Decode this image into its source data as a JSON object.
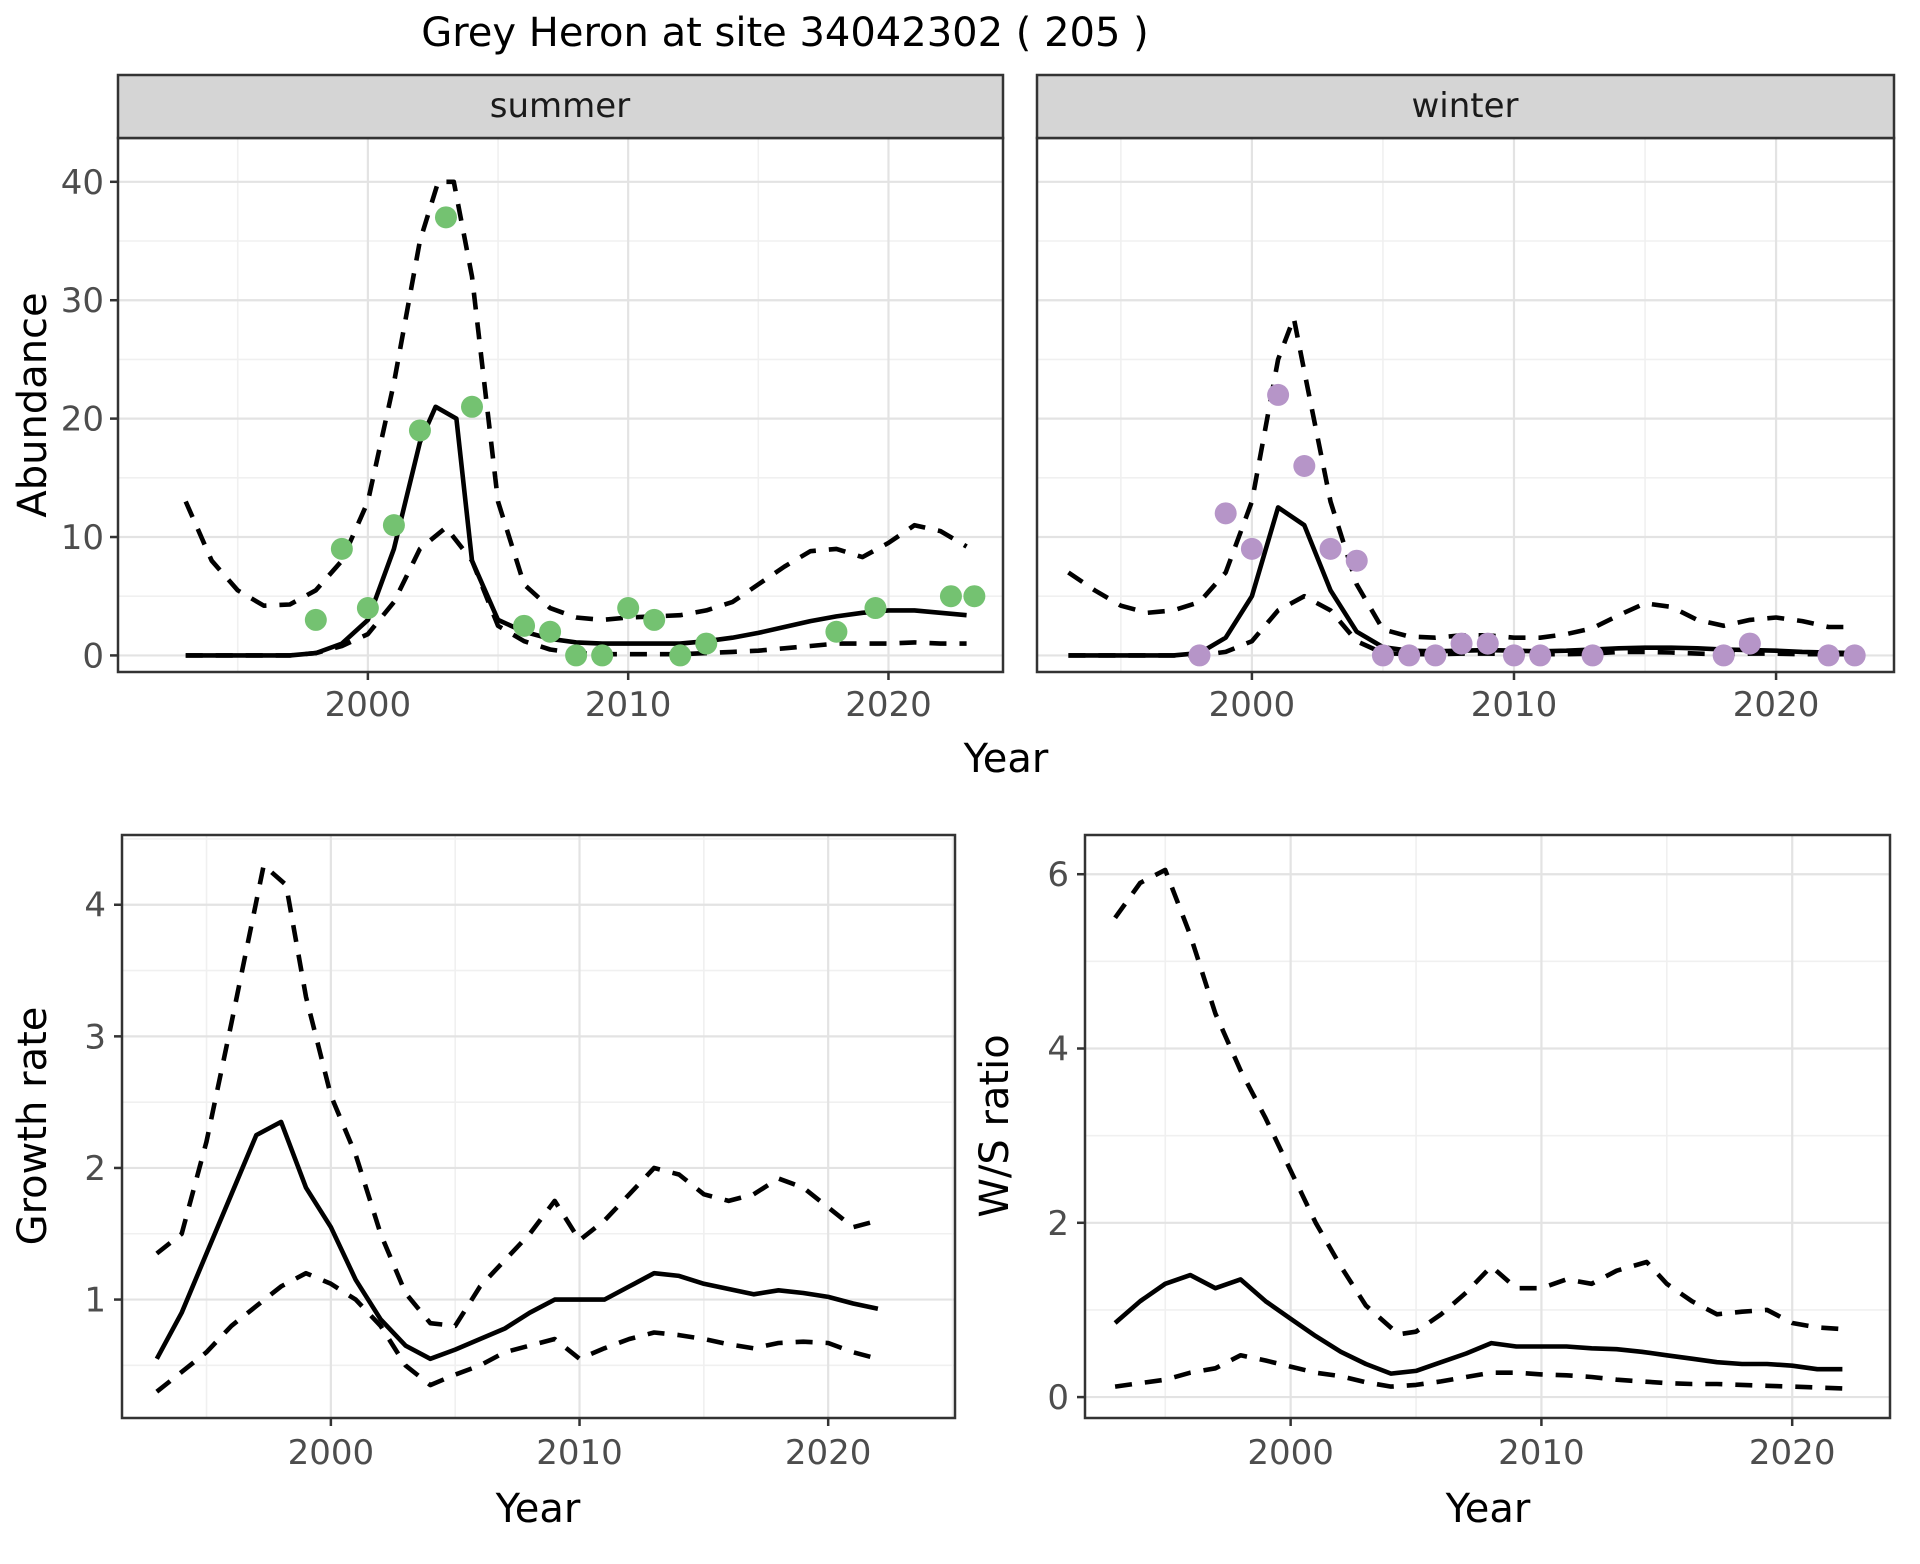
{
  "title": "Grey Heron at site 34042302 ( 205 )",
  "colors": {
    "summer_points": "#74c271",
    "winter_points": "#b695c8",
    "line": "#000000",
    "strip_fill": "#d5d5d5",
    "strip_border": "#333333",
    "panel_border": "#333333",
    "grid_major": "#e3e3e3",
    "grid_minor": "#f0f0f0",
    "tick_text": "#4d4d4d"
  },
  "chart_data": [
    {
      "id": "summer",
      "type": "line",
      "facet": "summer",
      "xlabel": "Year",
      "ylabel": "Abundance",
      "xlim": [
        1990.4,
        2024.4
      ],
      "ylim": [
        -1.4,
        43.7
      ],
      "xticks": [
        2000,
        2010,
        2020
      ],
      "xminor": [
        1995,
        2005,
        2015
      ],
      "yticks": [
        0,
        10,
        20,
        30,
        40
      ],
      "yminor": [
        5,
        15,
        25,
        35
      ],
      "series": [
        {
          "name": "ci_upper",
          "style": "dashed",
          "color": "#000000",
          "x": [
            1993,
            1994,
            1995,
            1996,
            1997,
            1998,
            1999,
            2000,
            2001,
            2002,
            2002.7,
            2003.3,
            2004,
            2005,
            2006,
            2007,
            2008,
            2009,
            2010,
            2011,
            2012,
            2013,
            2014,
            2015,
            2016,
            2017,
            2018,
            2019,
            2020,
            2021,
            2022,
            2023
          ],
          "y": [
            13,
            8,
            5.5,
            4.2,
            4.3,
            5.5,
            8,
            13,
            23,
            35,
            40,
            40,
            32,
            13,
            6,
            4,
            3.2,
            3,
            3.2,
            3.3,
            3.4,
            3.8,
            4.5,
            6,
            7.5,
            8.8,
            9,
            8.3,
            9.5,
            11,
            10.5,
            9.2
          ]
        },
        {
          "name": "ci_lower",
          "style": "dashed",
          "color": "#000000",
          "x": [
            1993,
            1994,
            1995,
            1996,
            1997,
            1998,
            1999,
            2000,
            2001,
            2002,
            2003,
            2004,
            2005,
            2006,
            2007,
            2008,
            2009,
            2010,
            2011,
            2012,
            2013,
            2014,
            2015,
            2016,
            2017,
            2018,
            2019,
            2020,
            2021,
            2022,
            2023
          ],
          "y": [
            0,
            0,
            0,
            0,
            0,
            0.2,
            0.8,
            1.8,
            4.5,
            9,
            10.8,
            8,
            2.5,
            1.2,
            0.5,
            0.2,
            0.1,
            0.1,
            0.1,
            0.1,
            0.2,
            0.3,
            0.4,
            0.6,
            0.8,
            1,
            1,
            1,
            1.1,
            1,
            1
          ]
        },
        {
          "name": "fitted",
          "style": "solid",
          "color": "#000000",
          "x": [
            1993,
            1994,
            1995,
            1996,
            1997,
            1998,
            1999,
            2000,
            2001,
            2002,
            2002.6,
            2003.4,
            2004,
            2005,
            2006,
            2007,
            2008,
            2009,
            2010,
            2011,
            2012,
            2013,
            2014,
            2015,
            2016,
            2017,
            2018,
            2019,
            2020,
            2021,
            2022,
            2023
          ],
          "y": [
            0,
            0,
            0,
            0,
            0,
            0.2,
            1,
            3,
            9,
            18,
            21,
            20,
            8,
            3,
            2,
            1.4,
            1.1,
            1,
            1,
            1,
            1,
            1.2,
            1.5,
            1.9,
            2.4,
            2.9,
            3.3,
            3.6,
            3.8,
            3.8,
            3.6,
            3.4
          ]
        },
        {
          "name": "observed",
          "style": "points",
          "color": "#74c271",
          "x": [
            1998,
            1999,
            2000,
            2001,
            2002,
            2003,
            2004,
            2006,
            2007,
            2008,
            2009,
            2010,
            2011,
            2012,
            2013,
            2018,
            2019.5,
            2022.4,
            2023.3
          ],
          "y": [
            3,
            9,
            4,
            11,
            19,
            37,
            21,
            2.5,
            2,
            0,
            0,
            4,
            3,
            0,
            1,
            2,
            4,
            5,
            5
          ]
        }
      ]
    },
    {
      "id": "winter",
      "type": "line",
      "facet": "winter",
      "xlabel": "Year",
      "ylabel": "Abundance",
      "xlim": [
        1991.8,
        2024.5
      ],
      "ylim": [
        -1.4,
        43.7
      ],
      "xticks": [
        2000,
        2010,
        2020
      ],
      "xminor": [
        1995,
        2005,
        2015
      ],
      "yticks": [
        0,
        10,
        20,
        30,
        40
      ],
      "yminor": [
        5,
        15,
        25,
        35
      ],
      "series": [
        {
          "name": "ci_upper",
          "style": "dashed",
          "color": "#000000",
          "x": [
            1993,
            1994,
            1995,
            1996,
            1997,
            1998,
            1999,
            2000,
            2001,
            2001.6,
            2002,
            2003,
            2004,
            2005,
            2006,
            2007,
            2008,
            2009,
            2010,
            2011,
            2012,
            2013,
            2014,
            2015,
            2016,
            2017,
            2018,
            2019,
            2020,
            2021,
            2022,
            2023
          ],
          "y": [
            7,
            5.5,
            4.2,
            3.6,
            3.8,
            4.5,
            7,
            13,
            25,
            28.5,
            24,
            13,
            6,
            2.2,
            1.6,
            1.5,
            1.7,
            1.7,
            1.5,
            1.5,
            1.8,
            2.3,
            3.4,
            4.4,
            4.1,
            3,
            2.5,
            3,
            3.2,
            2.9,
            2.4,
            2.4
          ]
        },
        {
          "name": "ci_lower",
          "style": "dashed",
          "color": "#000000",
          "x": [
            1993,
            1994,
            1995,
            1996,
            1997,
            1998,
            1999,
            2000,
            2001,
            2002,
            2003,
            2004,
            2005,
            2006,
            2007,
            2008,
            2009,
            2010,
            2011,
            2012,
            2013,
            2014,
            2015,
            2016,
            2017,
            2018,
            2019,
            2020,
            2021,
            2022,
            2023
          ],
          "y": [
            0,
            0,
            0,
            0,
            0,
            0,
            0.3,
            1.2,
            3.8,
            5,
            3.8,
            1.2,
            0.2,
            0.1,
            0.1,
            0.15,
            0.15,
            0.1,
            0.1,
            0.1,
            0.15,
            0.3,
            0.3,
            0.25,
            0.15,
            0.1,
            0.15,
            0.15,
            0.1,
            0.1,
            0.1
          ]
        },
        {
          "name": "fitted",
          "style": "solid",
          "color": "#000000",
          "x": [
            1993,
            1994,
            1995,
            1996,
            1997,
            1998,
            1999,
            2000,
            2001,
            2002,
            2003,
            2004,
            2005,
            2006,
            2007,
            2008,
            2009,
            2010,
            2011,
            2012,
            2013,
            2014,
            2015,
            2016,
            2017,
            2018,
            2019,
            2020,
            2021,
            2022,
            2023
          ],
          "y": [
            0,
            0,
            0,
            0,
            0,
            0.2,
            1.5,
            5,
            12.5,
            11,
            5.5,
            2,
            0.7,
            0.4,
            0.35,
            0.4,
            0.45,
            0.4,
            0.35,
            0.4,
            0.5,
            0.6,
            0.65,
            0.65,
            0.6,
            0.5,
            0.45,
            0.4,
            0.3,
            0.25,
            0.2
          ]
        },
        {
          "name": "observed",
          "style": "points",
          "color": "#b695c8",
          "x": [
            1998,
            1999,
            2000,
            2001,
            2002,
            2003,
            2004,
            2005,
            2006,
            2007,
            2008,
            2009,
            2010,
            2011,
            2013,
            2018,
            2019,
            2022,
            2023
          ],
          "y": [
            0,
            12,
            9,
            22,
            16,
            9,
            8,
            0,
            0,
            0,
            1,
            1,
            0,
            0,
            0,
            0,
            1,
            0,
            0
          ]
        }
      ]
    },
    {
      "id": "growth",
      "type": "line",
      "facet": null,
      "xlabel": "Year",
      "ylabel": "Growth rate",
      "xlim": [
        1991.6,
        2025.1
      ],
      "ylim": [
        0.1,
        4.53
      ],
      "xticks": [
        2000,
        2010,
        2020
      ],
      "xminor": [
        1995,
        2005,
        2015,
        2025
      ],
      "yticks": [
        1,
        2,
        3,
        4
      ],
      "yminor": [
        0.5,
        1.5,
        2.5,
        3.5,
        4.5
      ],
      "series": [
        {
          "name": "ci_upper",
          "style": "dashed",
          "color": "#000000",
          "x": [
            1993,
            1994,
            1995,
            1996,
            1997.3,
            1998.2,
            1999,
            2000,
            2001,
            2002,
            2003,
            2004,
            2005,
            2006,
            2007,
            2008,
            2009,
            2010,
            2011,
            2012,
            2013,
            2014,
            2015,
            2016,
            2017,
            2018,
            2019,
            2020,
            2021,
            2022
          ],
          "y": [
            1.35,
            1.5,
            2.2,
            3.1,
            4.3,
            4.15,
            3.3,
            2.55,
            2.1,
            1.5,
            1.05,
            0.82,
            0.8,
            1.1,
            1.3,
            1.5,
            1.75,
            1.45,
            1.6,
            1.8,
            2,
            1.95,
            1.8,
            1.75,
            1.8,
            1.92,
            1.85,
            1.7,
            1.55,
            1.6
          ]
        },
        {
          "name": "ci_lower",
          "style": "dashed",
          "color": "#000000",
          "x": [
            1993,
            1994,
            1995,
            1996,
            1997,
            1998,
            1999,
            2000,
            2001,
            2002,
            2003,
            2004,
            2005,
            2006,
            2007,
            2008,
            2009,
            2010,
            2011,
            2012,
            2013,
            2014,
            2015,
            2016,
            2017,
            2018,
            2019,
            2020,
            2021,
            2022
          ],
          "y": [
            0.3,
            0.45,
            0.6,
            0.8,
            0.95,
            1.1,
            1.2,
            1.12,
            1,
            0.8,
            0.5,
            0.35,
            0.43,
            0.5,
            0.6,
            0.65,
            0.7,
            0.55,
            0.63,
            0.7,
            0.75,
            0.73,
            0.7,
            0.66,
            0.63,
            0.67,
            0.68,
            0.67,
            0.6,
            0.55
          ]
        },
        {
          "name": "fitted",
          "style": "solid",
          "color": "#000000",
          "x": [
            1993,
            1994,
            1995,
            1996,
            1997,
            1998,
            1999,
            2000,
            2001,
            2002,
            2003,
            2004,
            2005,
            2006,
            2007,
            2008,
            2009,
            2010,
            2011,
            2012,
            2013,
            2014,
            2015,
            2016,
            2017,
            2018,
            2019,
            2020,
            2021,
            2022
          ],
          "y": [
            0.55,
            0.9,
            1.35,
            1.8,
            2.25,
            2.35,
            1.85,
            1.55,
            1.15,
            0.85,
            0.65,
            0.55,
            0.62,
            0.7,
            0.78,
            0.9,
            1,
            1,
            1,
            1.1,
            1.2,
            1.18,
            1.12,
            1.08,
            1.04,
            1.07,
            1.05,
            1.02,
            0.97,
            0.93
          ]
        }
      ]
    },
    {
      "id": "ws",
      "type": "line",
      "facet": null,
      "xlabel": "Year",
      "ylabel": "W/S ratio",
      "xlim": [
        1991.8,
        2023.9
      ],
      "ylim": [
        -0.24,
        6.45
      ],
      "xticks": [
        2000,
        2010,
        2020
      ],
      "xminor": [
        1995,
        2005,
        2015
      ],
      "yticks": [
        0,
        2,
        4,
        6
      ],
      "yminor": [
        1,
        3,
        5
      ],
      "series": [
        {
          "name": "ci_upper",
          "style": "dashed",
          "color": "#000000",
          "x": [
            1993,
            1994,
            1995,
            1996,
            1997,
            1998,
            1999,
            2000,
            2001,
            2002,
            2003,
            2004.3,
            2005,
            2006,
            2007,
            2008,
            2009,
            2010,
            2011,
            2012,
            2013,
            2014.2,
            2015,
            2016,
            2017,
            2018,
            2019,
            2020,
            2021,
            2022
          ],
          "y": [
            5.5,
            5.9,
            6.05,
            5.3,
            4.4,
            3.75,
            3.2,
            2.6,
            2,
            1.5,
            1.05,
            0.72,
            0.75,
            0.95,
            1.2,
            1.5,
            1.25,
            1.25,
            1.35,
            1.3,
            1.45,
            1.55,
            1.3,
            1.1,
            0.95,
            0.98,
            1,
            0.85,
            0.8,
            0.78
          ]
        },
        {
          "name": "ci_lower",
          "style": "dashed",
          "color": "#000000",
          "x": [
            1993,
            1994,
            1995,
            1996,
            1997,
            1998,
            1999,
            2000,
            2001,
            2002,
            2003,
            2004,
            2005,
            2006,
            2007,
            2008,
            2009,
            2010,
            2011,
            2012,
            2013,
            2014,
            2015,
            2016,
            2017,
            2018,
            2019,
            2020,
            2021,
            2022
          ],
          "y": [
            0.12,
            0.16,
            0.2,
            0.28,
            0.33,
            0.48,
            0.42,
            0.35,
            0.28,
            0.24,
            0.17,
            0.12,
            0.14,
            0.18,
            0.23,
            0.28,
            0.28,
            0.26,
            0.25,
            0.23,
            0.2,
            0.18,
            0.16,
            0.15,
            0.15,
            0.14,
            0.13,
            0.12,
            0.11,
            0.1
          ]
        },
        {
          "name": "fitted",
          "style": "solid",
          "color": "#000000",
          "x": [
            1993,
            1994,
            1995,
            1996,
            1997,
            1998,
            1999,
            2000,
            2001,
            2002,
            2003,
            2004,
            2005,
            2006,
            2007,
            2008,
            2009,
            2010,
            2011,
            2012,
            2013,
            2014,
            2015,
            2016,
            2017,
            2018,
            2019,
            2020,
            2021,
            2022
          ],
          "y": [
            0.85,
            1.1,
            1.3,
            1.4,
            1.25,
            1.35,
            1.1,
            0.9,
            0.7,
            0.52,
            0.38,
            0.27,
            0.3,
            0.4,
            0.5,
            0.62,
            0.58,
            0.58,
            0.58,
            0.56,
            0.55,
            0.52,
            0.48,
            0.44,
            0.4,
            0.38,
            0.38,
            0.36,
            0.32,
            0.32
          ]
        }
      ]
    }
  ]
}
